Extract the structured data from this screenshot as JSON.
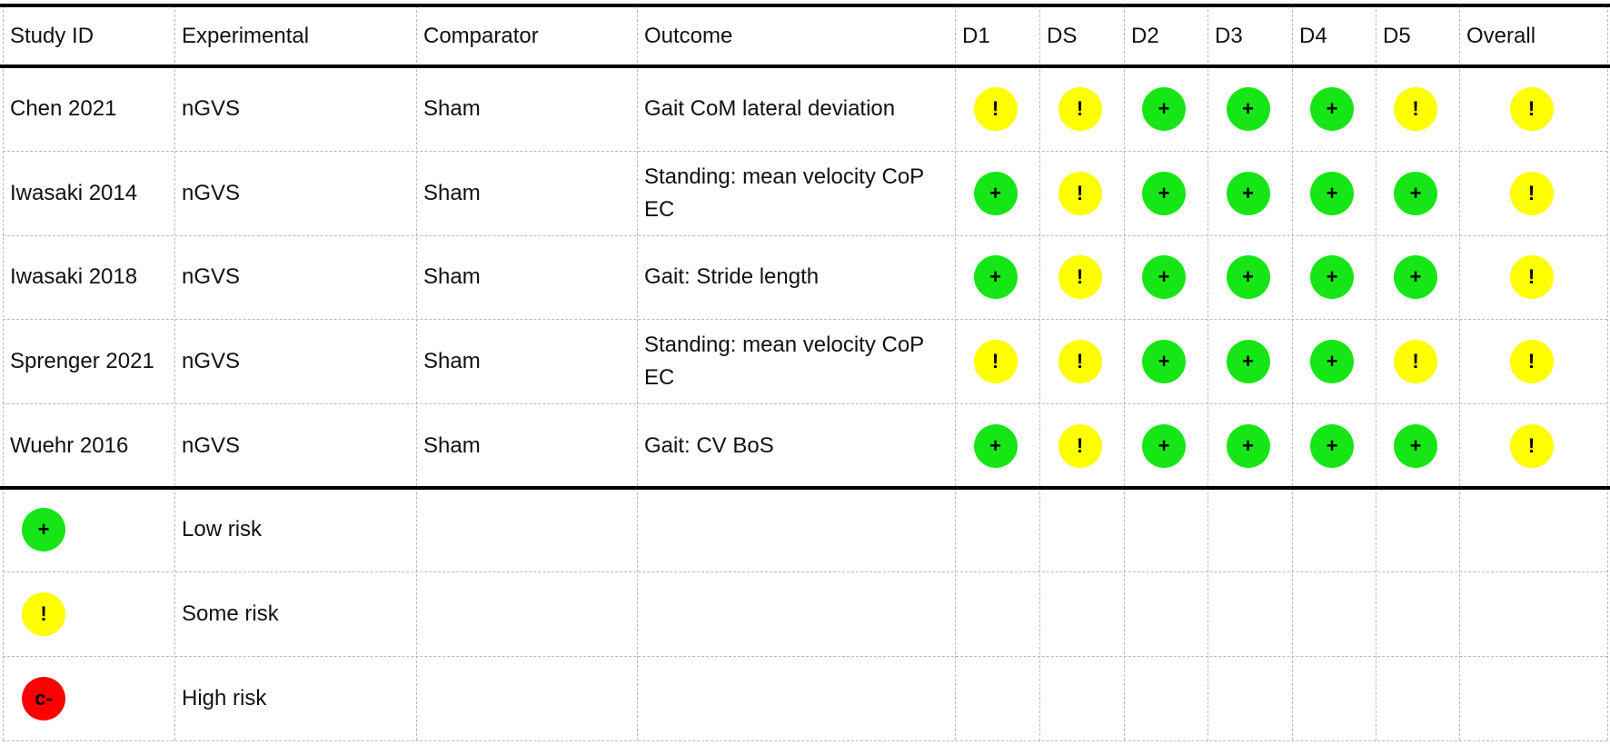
{
  "table": {
    "columns": [
      "Study ID",
      "Experimental",
      "Comparator",
      "Outcome",
      "D1",
      "DS",
      "D2",
      "D3",
      "D4",
      "D5",
      "Overall"
    ],
    "rows": [
      [
        "Chen 2021",
        "nGVS",
        "Sham",
        "Gait CoM lateral deviation",
        "!",
        "!",
        "+",
        "+",
        "+",
        "!",
        "!"
      ],
      [
        "Iwasaki 2014",
        "nGVS",
        "Sham",
        "Standing: mean velocity CoP EC",
        "+",
        "!",
        "+",
        "+",
        "+",
        "+",
        "!"
      ],
      [
        "Iwasaki 2018",
        "nGVS",
        "Sham",
        "Gait: Stride length",
        "+",
        "!",
        "+",
        "+",
        "+",
        "+",
        "!"
      ],
      [
        "Sprenger 2021",
        "nGVS",
        "Sham",
        "Standing: mean velocity CoP EC",
        "!",
        "!",
        "+",
        "+",
        "+",
        "!",
        "!"
      ],
      [
        "Wuehr 2016",
        "nGVS",
        "Sham",
        "Gait: CV BoS",
        "+",
        "!",
        "+",
        "+",
        "+",
        "+",
        "!"
      ]
    ],
    "legend": [
      {
        "symbol": "+",
        "label": "Low risk",
        "color": "#16e616"
      },
      {
        "symbol": "!",
        "label": "Some risk",
        "color": "#ffff00"
      },
      {
        "symbol": "c-",
        "label": "High risk",
        "color": "#ff0000"
      }
    ]
  }
}
